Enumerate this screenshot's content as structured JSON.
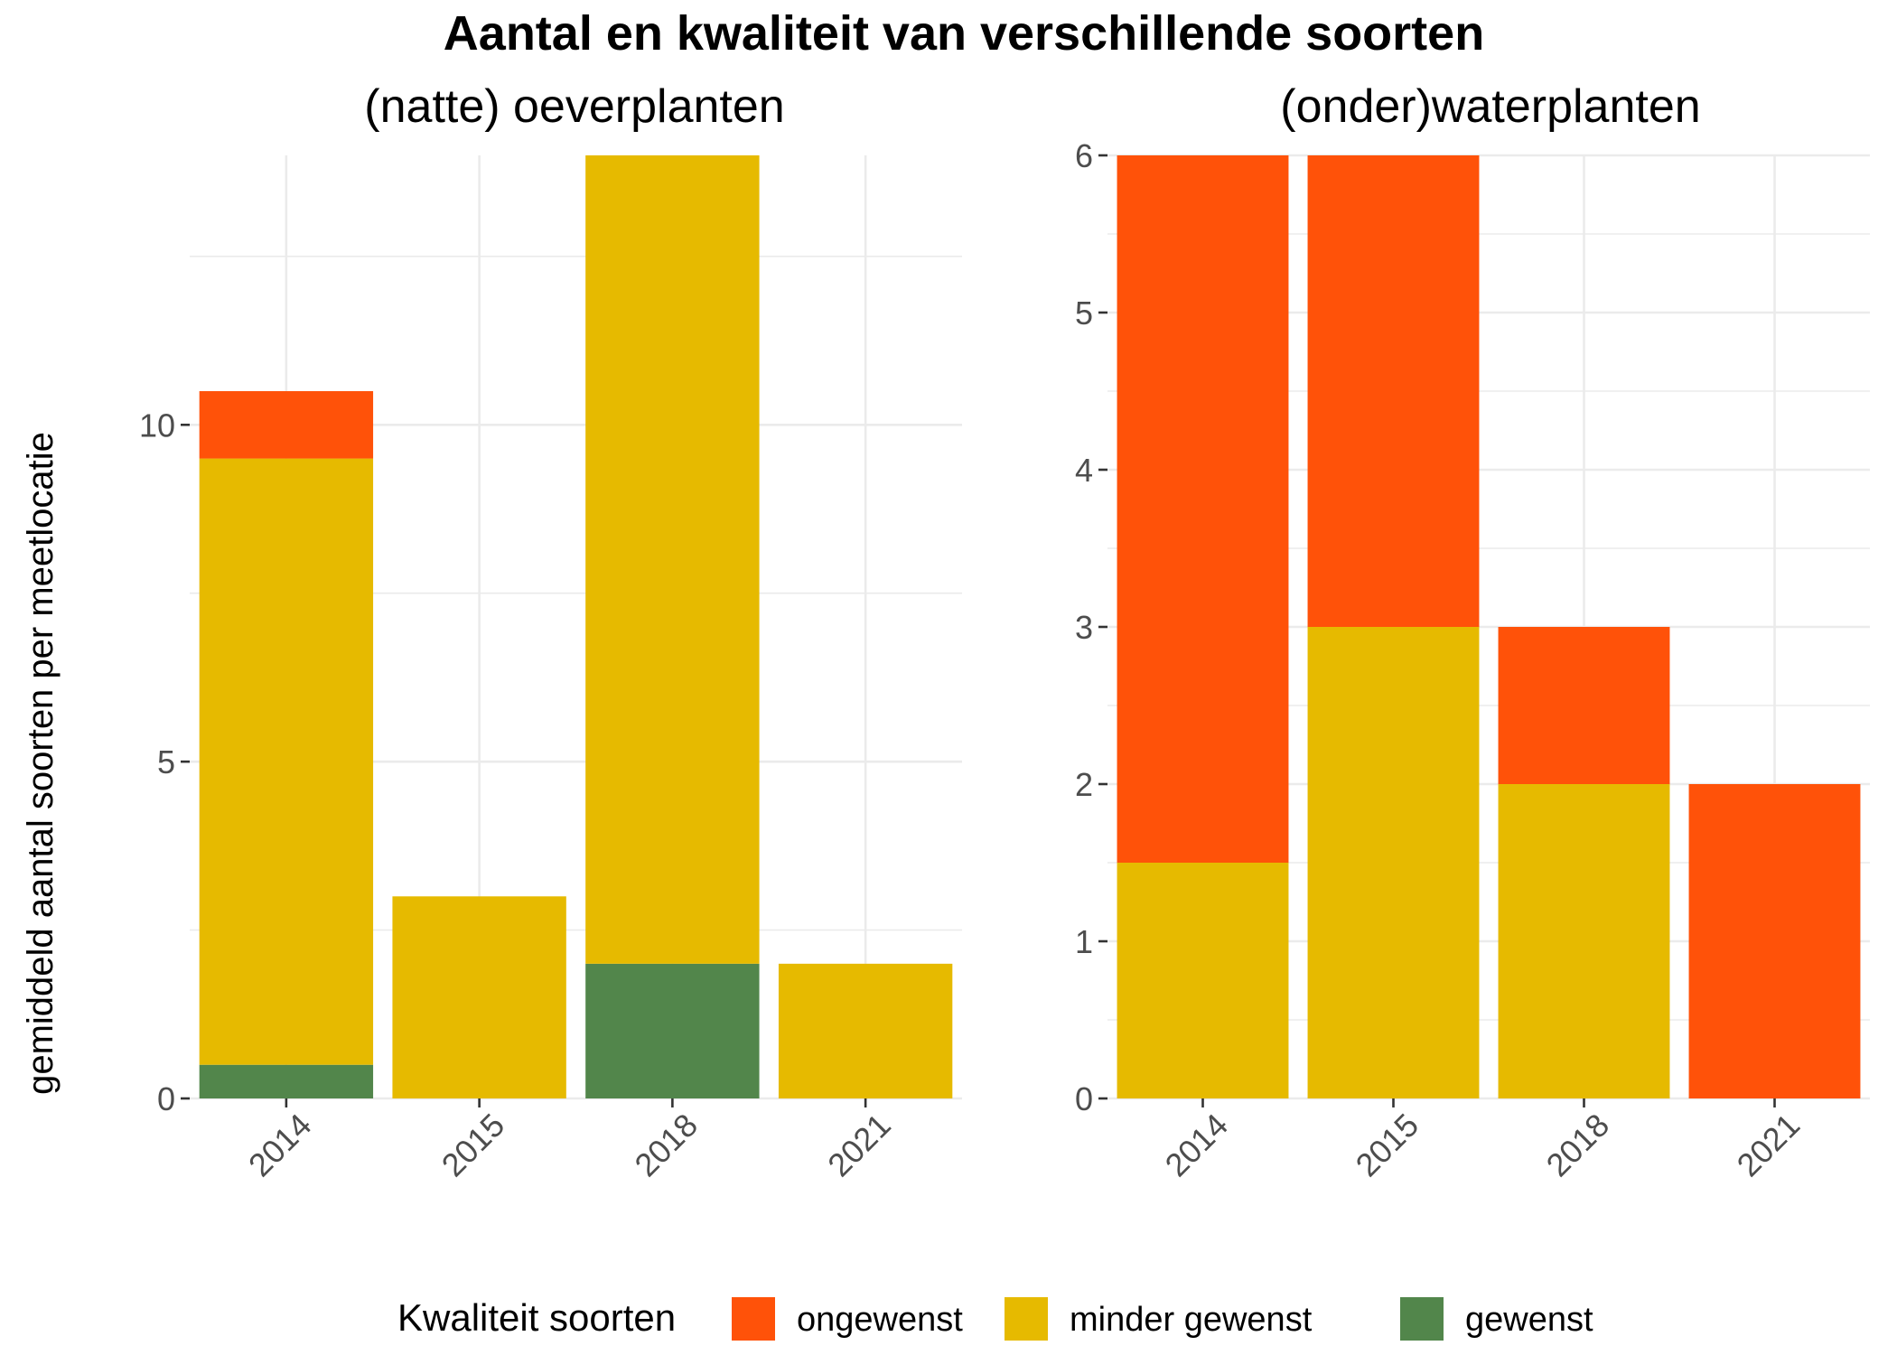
{
  "chart_data": {
    "type": "bar",
    "stacked": true,
    "title": "Aantal en kwaliteit van verschillende soorten",
    "ylabel": "gemiddeld aantal soorten per meetlocatie",
    "legend": {
      "title": "Kwaliteit soorten",
      "placement": "bottom",
      "entries": [
        {
          "name": "ongewenst",
          "color": "#FF5209"
        },
        {
          "name": "minder gewenst",
          "color": "#E6BA00"
        },
        {
          "name": "gewenst",
          "color": "#52864B"
        }
      ]
    },
    "panels": [
      {
        "subtitle": "(natte) oeverplanten",
        "categories": [
          "2014",
          "2015",
          "2018",
          "2021"
        ],
        "ylim": [
          0,
          14
        ],
        "yticks": [
          0,
          5,
          10
        ],
        "series": [
          {
            "name": "gewenst",
            "color": "#52864B",
            "values": [
              0.5,
              0,
              2,
              0
            ]
          },
          {
            "name": "minder gewenst",
            "color": "#E6BA00",
            "values": [
              9,
              3,
              12,
              2
            ]
          },
          {
            "name": "ongewenst",
            "color": "#FF5209",
            "values": [
              1,
              0,
              0,
              0
            ]
          }
        ]
      },
      {
        "subtitle": "(onder)waterplanten",
        "categories": [
          "2014",
          "2015",
          "2018",
          "2021"
        ],
        "ylim": [
          0,
          6
        ],
        "yticks": [
          0,
          1,
          2,
          3,
          4,
          5,
          6
        ],
        "series": [
          {
            "name": "gewenst",
            "color": "#52864B",
            "values": [
              0,
              0,
              0,
              0
            ]
          },
          {
            "name": "minder gewenst",
            "color": "#E6BA00",
            "values": [
              1.5,
              3,
              2,
              0
            ]
          },
          {
            "name": "ongewenst",
            "color": "#FF5209",
            "values": [
              4.5,
              3,
              1,
              2
            ]
          }
        ]
      }
    ]
  }
}
